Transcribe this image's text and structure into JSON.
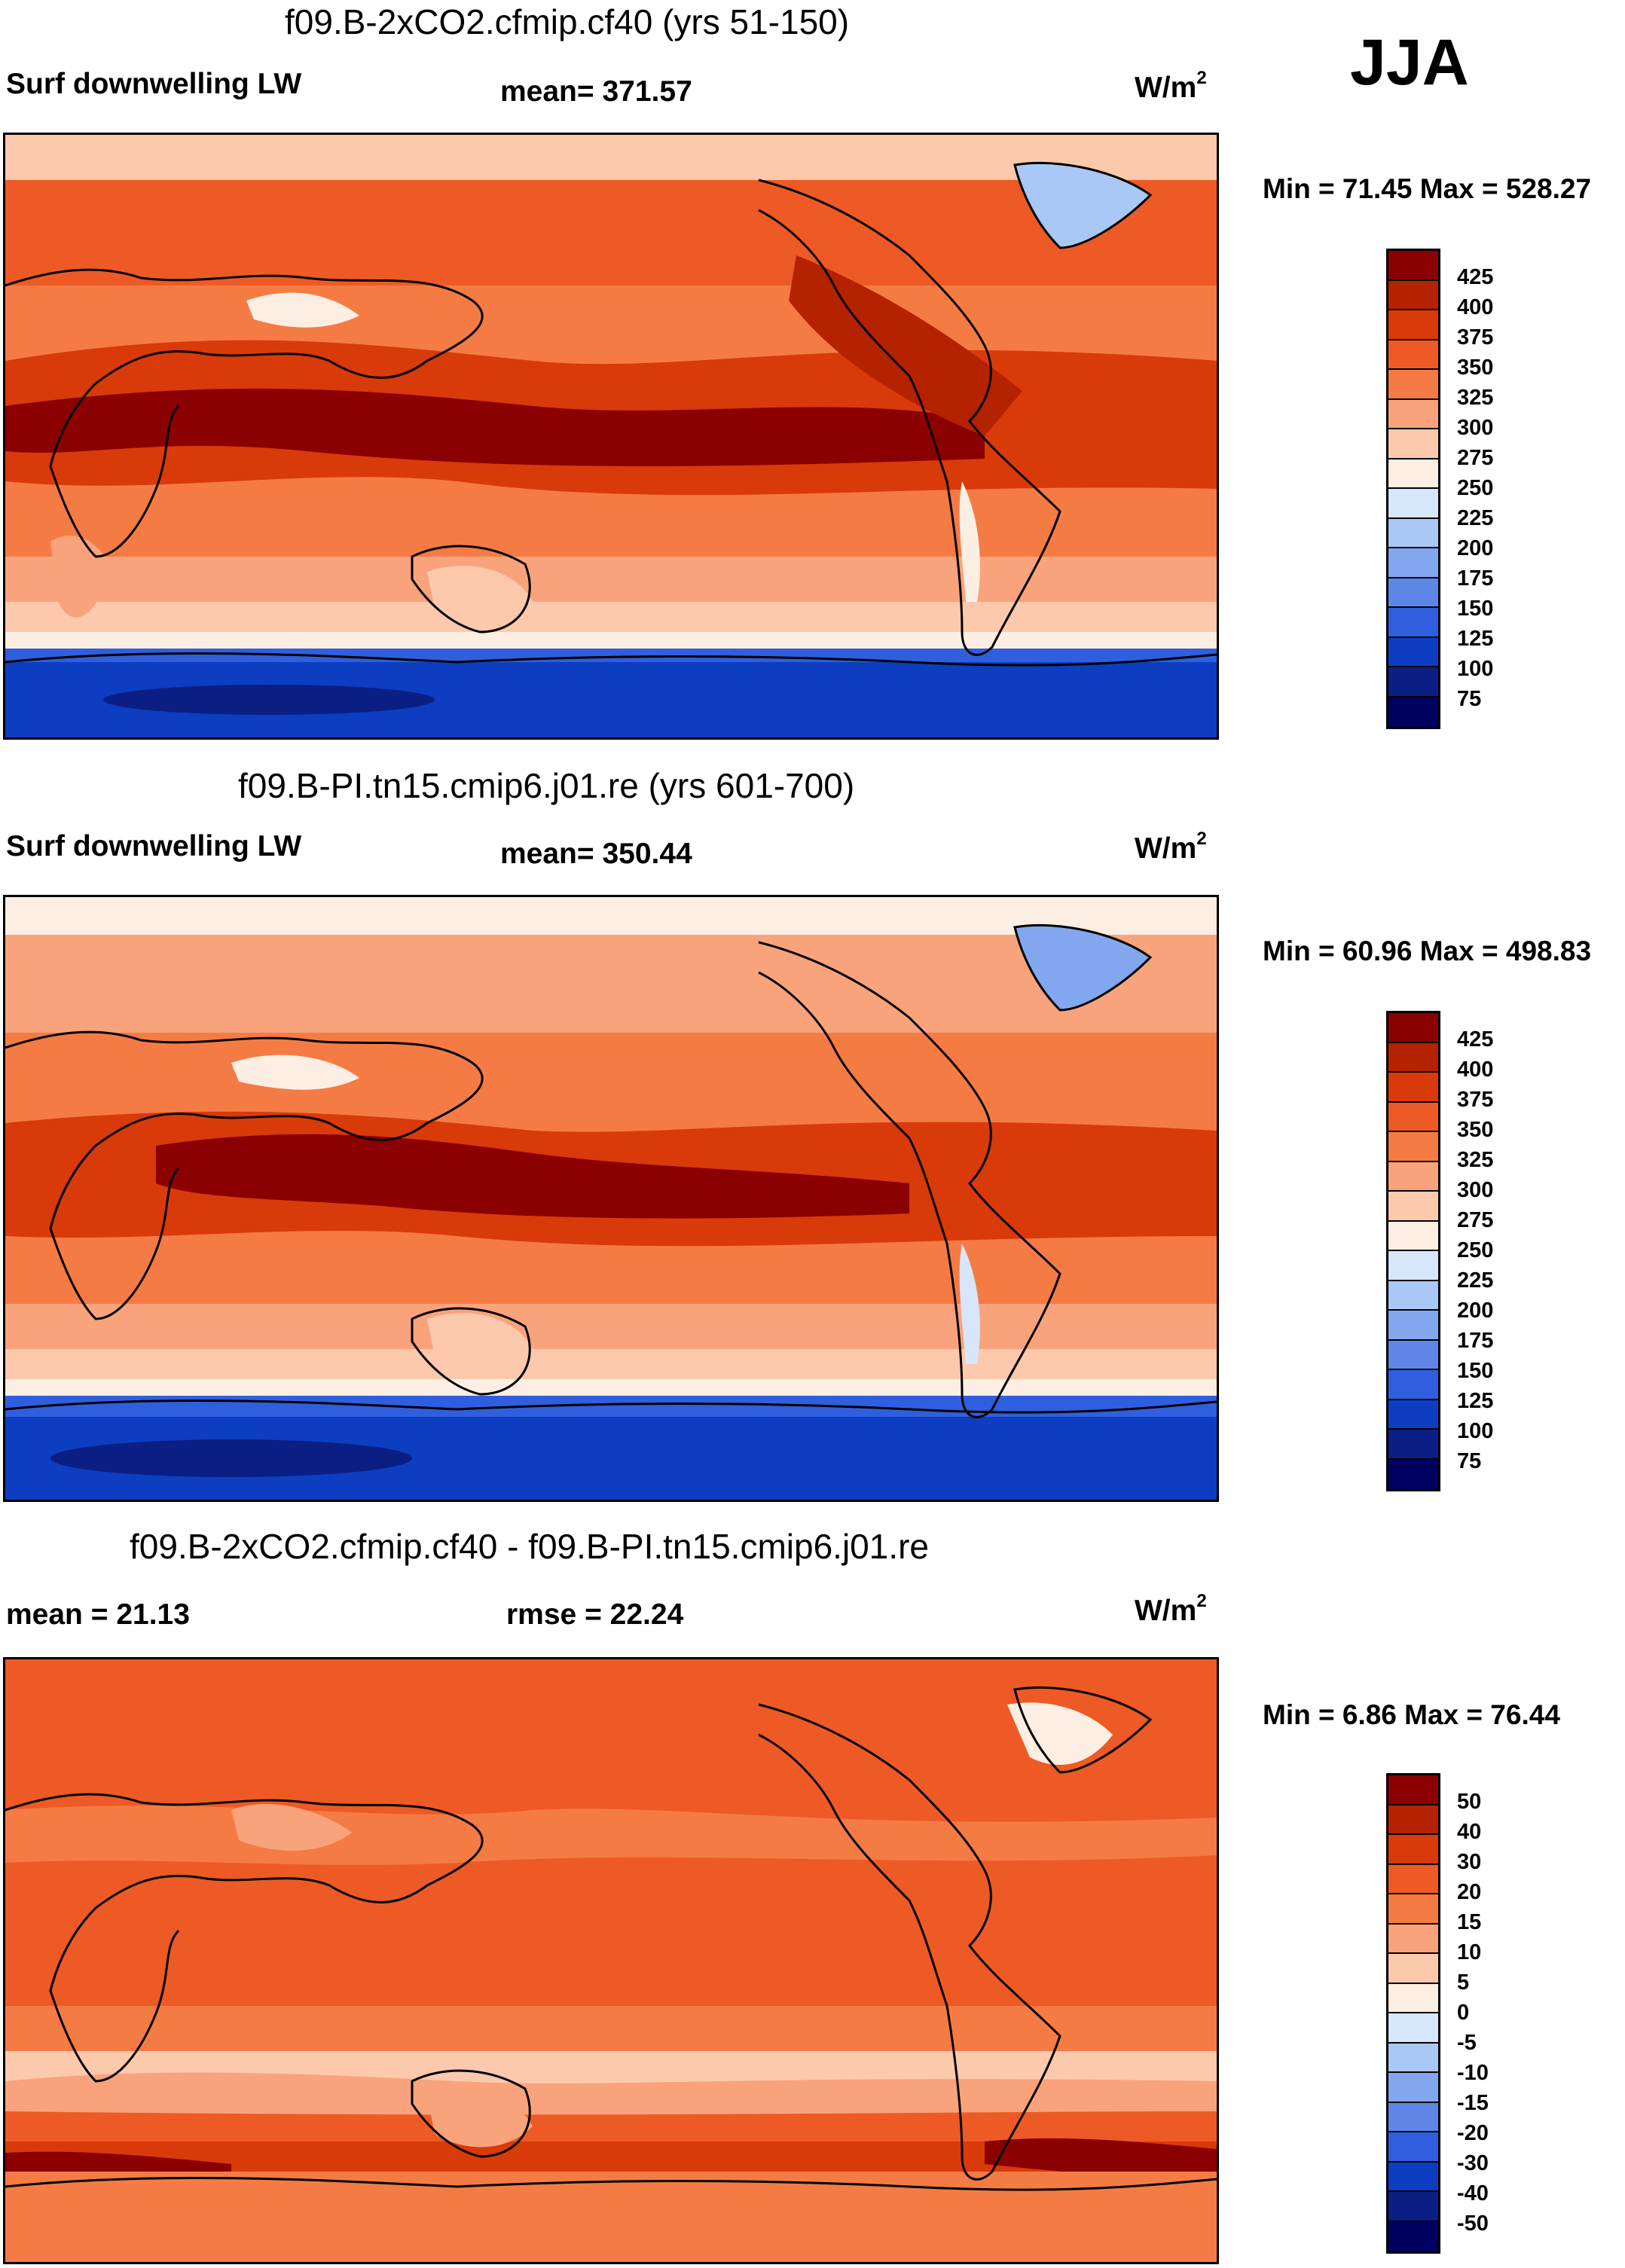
{
  "season": "JJA",
  "panels": [
    {
      "case_title": "f09.B-2xCO2.cfmip.cf40 (yrs 51-150)",
      "left_label": "Surf downwelling LW",
      "center_label": "mean= 371.57",
      "units": "W/m",
      "units_sup": "2",
      "minmax": "Min =  71.45 Max = 528.27",
      "levels": [
        "425",
        "400",
        "375",
        "350",
        "325",
        "300",
        "275",
        "250",
        "225",
        "200",
        "175",
        "150",
        "125",
        "100",
        "75"
      ]
    },
    {
      "case_title": "f09.B-PI.tn15.cmip6.j01.re (yrs 601-700)",
      "left_label": "Surf downwelling LW",
      "center_label": "mean= 350.44",
      "units": "W/m",
      "units_sup": "2",
      "minmax": "Min =  60.96 Max = 498.83",
      "levels": [
        "425",
        "400",
        "375",
        "350",
        "325",
        "300",
        "275",
        "250",
        "225",
        "200",
        "175",
        "150",
        "125",
        "100",
        "75"
      ]
    },
    {
      "case_title": "f09.B-2xCO2.cfmip.cf40 - f09.B-PI.tn15.cmip6.j01.re",
      "left_label": "mean =  21.13",
      "center_label": "rmse =  22.24",
      "units": "W/m",
      "units_sup": "2",
      "minmax": "Min =   6.86 Max =  76.44",
      "levels": [
        "50",
        "40",
        "30",
        "20",
        "15",
        "10",
        "5",
        "0",
        "-5",
        "-10",
        "-15",
        "-20",
        "-30",
        "-40",
        "-50"
      ]
    }
  ],
  "chart_data": [
    {
      "type": "heatmap",
      "title": "f09.B-2xCO2.cfmip.cf40 (yrs 51-150)",
      "variable": "Surf downwelling LW",
      "mean": 371.57,
      "min": 71.45,
      "max": 528.27,
      "units": "W/m2",
      "contour_levels": [
        75,
        100,
        125,
        150,
        175,
        200,
        225,
        250,
        275,
        300,
        325,
        350,
        375,
        400,
        425
      ]
    },
    {
      "type": "heatmap",
      "title": "f09.B-PI.tn15.cmip6.j01.re (yrs 601-700)",
      "variable": "Surf downwelling LW",
      "mean": 350.44,
      "min": 60.96,
      "max": 498.83,
      "units": "W/m2",
      "contour_levels": [
        75,
        100,
        125,
        150,
        175,
        200,
        225,
        250,
        275,
        300,
        325,
        350,
        375,
        400,
        425
      ]
    },
    {
      "type": "heatmap",
      "title": "f09.B-2xCO2.cfmip.cf40 - f09.B-PI.tn15.cmip6.j01.re",
      "mean": 21.13,
      "rmse": 22.24,
      "min": 6.86,
      "max": 76.44,
      "units": "W/m2",
      "contour_levels": [
        -50,
        -40,
        -30,
        -20,
        -15,
        -10,
        -5,
        0,
        5,
        10,
        15,
        20,
        30,
        40,
        50
      ]
    }
  ],
  "colors": {
    "abs_scale": [
      "#8b0000",
      "#b42200",
      "#d93a0a",
      "#ee5a25",
      "#f57b45",
      "#f9a37c",
      "#fcc9ad",
      "#fdeee3",
      "#d7e6fa",
      "#a9c8f5",
      "#83a7ee",
      "#5d86e6",
      "#2f5fde",
      "#0d3dc0",
      "#0a1e84",
      "#000060"
    ],
    "diff_scale": [
      "#8b0000",
      "#b42200",
      "#d93a0a",
      "#ee5a25",
      "#f57b45",
      "#f9a37c",
      "#fcc9ad",
      "#fdeee3",
      "#d7e6fa",
      "#a9c8f5",
      "#83a7ee",
      "#5d86e6",
      "#2f5fde",
      "#0d3dc0",
      "#0a1e84",
      "#000060"
    ]
  }
}
